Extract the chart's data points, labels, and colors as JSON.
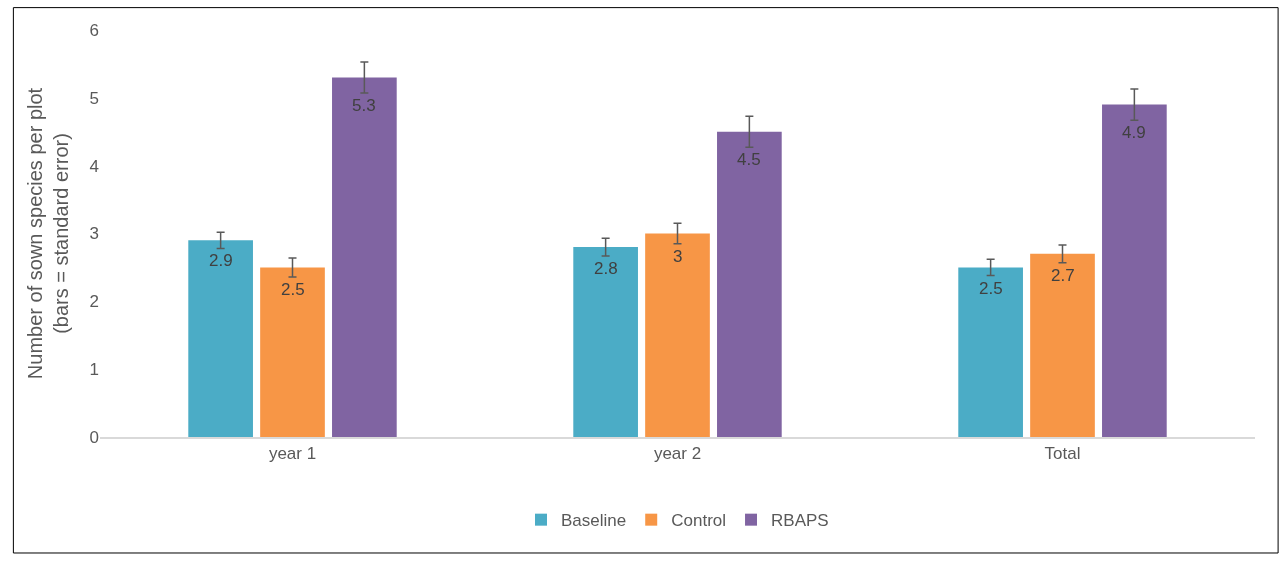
{
  "chart_data": {
    "type": "bar",
    "ylabel": "Number of sown species per plot\n(bars = standard error)",
    "categories": [
      "year 1",
      "year 2",
      "Total"
    ],
    "series": [
      {
        "name": "Baseline",
        "color": "#4bacc6",
        "values": [
          2.9,
          2.8,
          2.5
        ],
        "errors": [
          0.12,
          0.13,
          0.12
        ]
      },
      {
        "name": "Control",
        "color": "#f79646",
        "values": [
          2.5,
          3,
          2.7
        ],
        "errors": [
          0.14,
          0.15,
          0.13
        ]
      },
      {
        "name": "RBAPS",
        "color": "#8064a2",
        "values": [
          5.3,
          4.5,
          4.9
        ],
        "errors": [
          0.23,
          0.23,
          0.23
        ]
      }
    ],
    "ylim": [
      0,
      6
    ],
    "yticks": [
      0,
      1,
      2,
      3,
      4,
      5,
      6
    ],
    "data_labels": true,
    "grid": false,
    "legend": "bottom"
  }
}
